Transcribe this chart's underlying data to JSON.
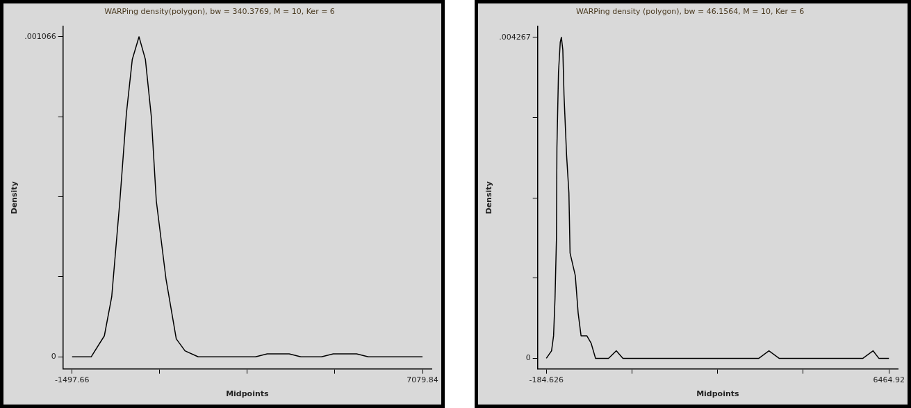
{
  "chart_data": [
    {
      "type": "line",
      "title": "WARPing density(polygon), bw = 340.3769, M = 10, Ker = 6",
      "xlabel": "Midpoints",
      "ylabel": "Density",
      "x": [
        -1497.66,
        -1031,
        -708,
        -528,
        -328,
        -169,
        -25,
        140,
        297,
        441,
        563,
        800,
        1052,
        1266,
        1590,
        2990,
        3277,
        3816,
        4104,
        4605,
        4894,
        5467,
        5754,
        7079.84
      ],
      "series": [
        {
          "color": "#000000",
          "values": [
            0,
            0,
            7e-05,
            0.0002,
            0.00052,
            0.00081,
            0.00099,
            0.001066,
            0.00099,
            0.0008,
            0.00052,
            0.00026,
            6e-05,
            2e-05,
            0,
            0,
            1e-05,
            1e-05,
            0,
            0,
            1e-05,
            1e-05,
            0,
            0
          ]
        }
      ],
      "xlim": [
        -1720,
        7300
      ],
      "xticks": [
        {
          "value": -1497.66,
          "label": "-1497.66"
        },
        {
          "value": 646.715,
          "label": null
        },
        {
          "value": 2791.09,
          "label": null
        },
        {
          "value": 4935.465,
          "label": null
        },
        {
          "value": 7079.84,
          "label": "7079.84"
        }
      ],
      "ylim": [
        -4e-05,
        0.0011
      ],
      "yticks": [
        0,
        {
          "value": 0.0002665,
          "label": null
        },
        {
          "value": 0.000533,
          "label": null
        },
        {
          "value": 0.0007995,
          "label": null
        },
        {
          "value": 0.001066,
          "label": ".001066"
        }
      ],
      "marker": "none",
      "line_style": "solid"
    },
    {
      "type": "line",
      "title": "WARPing density (polygon), bw = 46.1564, M = 10, Ker = 6",
      "xlabel": "Midpoints",
      "ylabel": "Density",
      "x": [
        -184.626,
        -83.6,
        -44.3,
        -16.3,
        11.8,
        20.4,
        51,
        85,
        107.2,
        135,
        158,
        208,
        253,
        275.5,
        377,
        433,
        489,
        601,
        685,
        770,
        882,
        1022,
        1173,
        1302,
        1415,
        3940,
        4136,
        4333,
        5960,
        6157,
        6269,
        6464.92
      ],
      "series": [
        {
          "color": "#000000",
          "values": [
            0,
            0.0001,
            0.0003,
            0.0008,
            0.0016,
            0.0028,
            0.0038,
            0.0042,
            0.004267,
            0.0041,
            0.0035,
            0.0027,
            0.0022,
            0.0014,
            0.0011,
            0.0006,
            0.0003,
            0.0003,
            0.0002,
            0,
            0,
            0,
            0.0001,
            0,
            0,
            0,
            0.0001,
            0,
            0,
            0.0001,
            0,
            0
          ]
        }
      ],
      "xlim": [
        -354,
        6637
      ],
      "xticks": [
        {
          "value": -184.626,
          "label": "-184.626"
        },
        {
          "value": 1477.7605,
          "label": null
        },
        {
          "value": 3140.147,
          "label": null
        },
        {
          "value": 4802.5335,
          "label": null
        },
        {
          "value": 6464.92,
          "label": "6464.92"
        }
      ],
      "ylim": [
        -0.00014,
        0.00441
      ],
      "yticks": [
        0,
        {
          "value": 0.00106675,
          "label": null
        },
        {
          "value": 0.0021335,
          "label": null
        },
        {
          "value": 0.00320025,
          "label": null
        },
        {
          "value": 0.004267,
          "label": ".004267"
        }
      ],
      "marker": "none",
      "line_style": "solid"
    }
  ]
}
